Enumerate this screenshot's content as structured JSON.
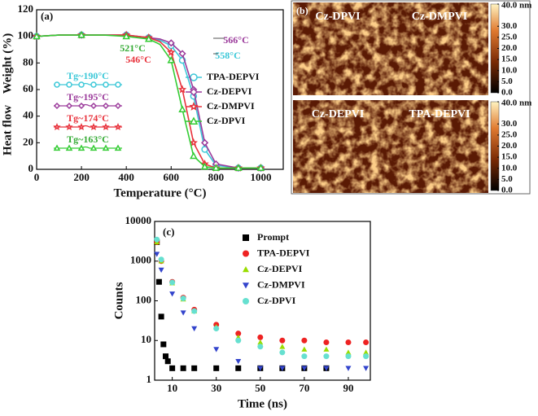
{
  "chart_data": [
    {
      "type": "line",
      "label": "(a)",
      "xlabel": "Temperature (°C)",
      "ylabel": "Weight (%)",
      "ylabel2": "Heat flow",
      "xlim": [
        0,
        1100
      ],
      "xticks": [
        0,
        200,
        400,
        600,
        800,
        1000
      ],
      "ylim": [
        0,
        120
      ],
      "yticks": [
        0,
        20,
        40,
        60,
        80,
        100,
        120
      ],
      "x": [
        0,
        100,
        200,
        300,
        400,
        450,
        500,
        550,
        600,
        650,
        700,
        750,
        800,
        900,
        1000
      ],
      "series": [
        {
          "name": "TPA-DEPVI",
          "color": "#3cc8d8",
          "marker": "circle",
          "values": [
            100,
            101,
            101,
            101,
            101,
            100,
            99,
            97,
            93,
            82,
            55,
            15,
            3,
            1,
            1
          ]
        },
        {
          "name": "Cz-DEPVI",
          "color": "#9b3a9b",
          "marker": "diamond",
          "values": [
            100,
            101,
            101,
            101,
            101,
            100,
            99,
            98,
            95,
            87,
            60,
            20,
            4,
            1,
            1
          ]
        },
        {
          "name": "Cz-DMPVI",
          "color": "#e8323c",
          "marker": "star",
          "values": [
            100,
            101,
            101,
            101,
            101,
            100,
            99,
            96,
            88,
            60,
            20,
            4,
            1,
            1,
            1
          ]
        },
        {
          "name": "Cz-DPVI",
          "color": "#33cc33",
          "marker": "triangle",
          "values": [
            100,
            101,
            101,
            101,
            100,
            99,
            98,
            94,
            82,
            45,
            10,
            2,
            1,
            1,
            1
          ]
        }
      ],
      "annotations": [
        "566°C",
        "558°C",
        "521°C",
        "546°C",
        "Tg~190°C",
        "Tg~195°C",
        "Tg~174°C",
        "Tg~163°C"
      ]
    },
    {
      "type": "image",
      "label": "(b)",
      "panels": [
        "Cz-DPVI",
        "Cz-DMPVI",
        "Cz-DEPVI",
        "TPA-DEPVI"
      ],
      "clim": [
        0,
        40
      ],
      "cmax_label": "40.0 nm",
      "cticks": [
        {
          "value": 30,
          "label": "30.0"
        },
        {
          "value": 25,
          "label": "25.0"
        },
        {
          "value": 20,
          "label": "20.0"
        },
        {
          "value": 15,
          "label": "15.0"
        },
        {
          "value": 10,
          "label": "10.0"
        },
        {
          "value": 5,
          "label": "5.0"
        },
        {
          "value": 0,
          "label": "0.0"
        }
      ]
    },
    {
      "type": "scatter",
      "label": "(c)",
      "xlabel": "Time (ns)",
      "ylabel": "Counts",
      "log_y": true,
      "xlim": [
        2,
        100
      ],
      "xticks": [
        10,
        30,
        50,
        70,
        90
      ],
      "ylim": [
        1,
        10000
      ],
      "yticks": [
        1,
        10,
        100,
        1000,
        10000
      ],
      "series": [
        {
          "name": "Prompt",
          "color": "#000000",
          "marker": "square",
          "x": [
            3,
            4,
            5,
            6,
            7,
            8,
            10,
            15,
            20,
            30,
            40,
            50,
            60,
            70,
            80
          ],
          "values": [
            3000,
            300,
            40,
            8,
            4,
            3,
            2,
            2,
            2,
            2,
            2,
            2,
            2,
            2,
            2
          ]
        },
        {
          "name": "TPA-DEPVI",
          "color": "#ee2222",
          "marker": "circle",
          "x": [
            3,
            5,
            10,
            15,
            20,
            30,
            40,
            50,
            60,
            70,
            80,
            90,
            98
          ],
          "values": [
            3000,
            1000,
            300,
            120,
            60,
            25,
            15,
            12,
            10,
            10,
            9,
            9,
            9
          ]
        },
        {
          "name": "Cz-DEPVI",
          "color": "#99dd00",
          "marker": "triangle",
          "x": [
            3,
            5,
            10,
            15,
            20,
            30,
            40,
            50,
            60,
            70,
            80,
            90,
            98
          ],
          "values": [
            3000,
            1000,
            280,
            110,
            55,
            22,
            12,
            9,
            7,
            6,
            6,
            5,
            5
          ]
        },
        {
          "name": "Cz-DMPVI",
          "color": "#3344cc",
          "marker": "tridown",
          "x": [
            3,
            5,
            10,
            15,
            20,
            30,
            40,
            50,
            60,
            70,
            80,
            90,
            98
          ],
          "values": [
            1500,
            600,
            150,
            50,
            20,
            6,
            3,
            2,
            2,
            2,
            2,
            2,
            2
          ]
        },
        {
          "name": "Cz-DPVI",
          "color": "#66e0d0",
          "marker": "circle",
          "x": [
            3,
            5,
            10,
            15,
            20,
            30,
            40,
            50,
            60,
            70,
            80,
            90,
            98
          ],
          "values": [
            3500,
            1100,
            290,
            115,
            55,
            20,
            10,
            7,
            5,
            4,
            4,
            4,
            4
          ]
        }
      ]
    }
  ]
}
